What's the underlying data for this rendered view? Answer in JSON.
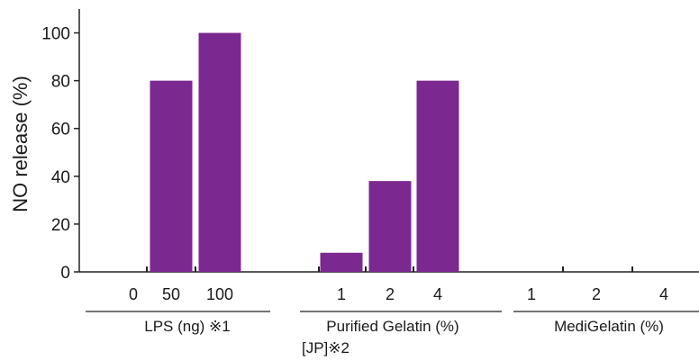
{
  "chart_data": {
    "type": "bar",
    "ylabel": "NO release (%)",
    "ylim": [
      0,
      110
    ],
    "yticks": [
      0,
      20,
      40,
      60,
      80,
      100
    ],
    "bar_color": "#7b2890",
    "grid": false,
    "groups": [
      {
        "label_lines": [
          "LPS (ng) ※1"
        ],
        "categories": [
          "0",
          "50",
          "100"
        ],
        "values": [
          0,
          80,
          100
        ]
      },
      {
        "label_lines": [
          "Purified Gelatin (%)",
          "[JP]※2"
        ],
        "categories": [
          "1",
          "2",
          "4"
        ],
        "values": [
          8,
          38,
          80
        ]
      },
      {
        "label_lines": [
          "MediGelatin (%)"
        ],
        "categories": [
          "1",
          "2",
          "4"
        ],
        "values": [
          0,
          0,
          0
        ]
      }
    ]
  }
}
